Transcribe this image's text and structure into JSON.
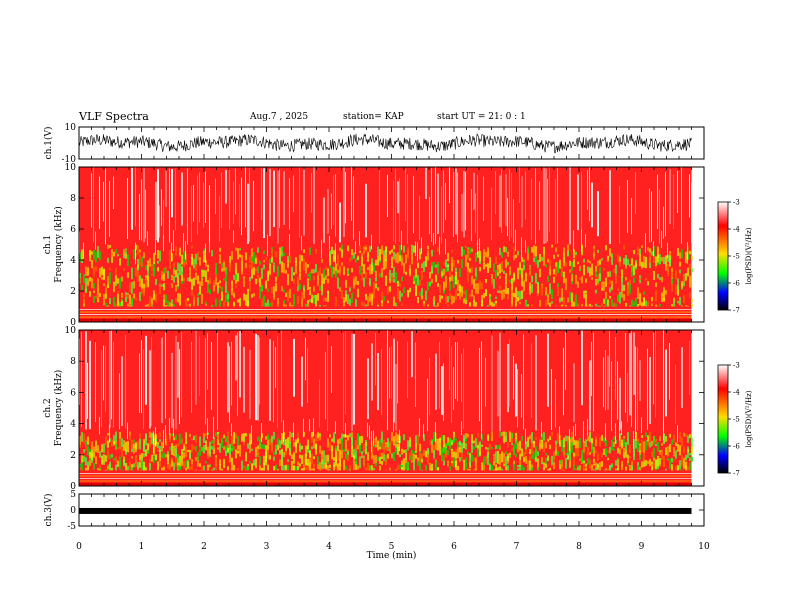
{
  "header": {
    "title": "VLF Spectra",
    "date": "Aug.7 , 2025",
    "station": "station= KAP",
    "start": "start UT = 21: 0 : 1"
  },
  "colorbar": {
    "label": "log(PSD)(V²/Hz)",
    "ticks": [
      "-3",
      "-4",
      "-5",
      "-6",
      "-7"
    ],
    "stops": [
      "#ffffff",
      "#ff0000",
      "#ffdd00",
      "#00ff00",
      "#0000ff",
      "#000000"
    ]
  },
  "chart_data": [
    {
      "type": "line",
      "name": "ch.1 waveform",
      "ylabel": "ch.1(V)",
      "ylim": [
        -10,
        10
      ],
      "ytick_labels": [
        "10",
        "-10"
      ],
      "xlim": [
        0,
        10
      ],
      "note_values": "noisy waveform roughly between -5 and 5 V across 0-9.8 min",
      "x_end": 9.8
    },
    {
      "type": "heatmap",
      "name": "ch.1 spectrogram",
      "ylabel": "ch.1 Frequency (kHz)",
      "ylim": [
        0,
        10
      ],
      "ytick_labels": [
        "0",
        "2",
        "4",
        "6",
        "8",
        "10"
      ],
      "xlim": [
        0,
        10
      ],
      "x_end": 9.8,
      "bands_kHz": {
        "low_power_red_below": 0.8,
        "green_yellow": [
          1.0,
          5.0
        ],
        "red_white": [
          5.0,
          10.0
        ]
      },
      "colorbar_range": [
        -7,
        -3
      ]
    },
    {
      "type": "heatmap",
      "name": "ch.2 spectrogram",
      "ylabel": "ch.2 Frequency (kHz)",
      "ylim": [
        0,
        10
      ],
      "ytick_labels": [
        "0",
        "2",
        "4",
        "6",
        "8",
        "10"
      ],
      "xlim": [
        0,
        10
      ],
      "x_end": 9.8,
      "bands_kHz": {
        "low_power_red_below": 0.8,
        "green_yellow": [
          1.0,
          3.5
        ],
        "red_white": [
          3.5,
          10.0
        ]
      },
      "colorbar_range": [
        -7,
        -3
      ]
    },
    {
      "type": "line",
      "name": "ch.3 waveform",
      "ylabel": "ch.3(V)",
      "ylim": [
        -5,
        5
      ],
      "ytick_labels": [
        "5",
        "0",
        "-5"
      ],
      "xlim": [
        0,
        10
      ],
      "x_end": 9.8,
      "note_values": "flat thick trace near -0.3 V"
    }
  ],
  "xaxis": {
    "label": "Time (min)",
    "ticks": [
      "0",
      "1",
      "2",
      "3",
      "4",
      "5",
      "6",
      "7",
      "8",
      "9",
      "10"
    ]
  }
}
